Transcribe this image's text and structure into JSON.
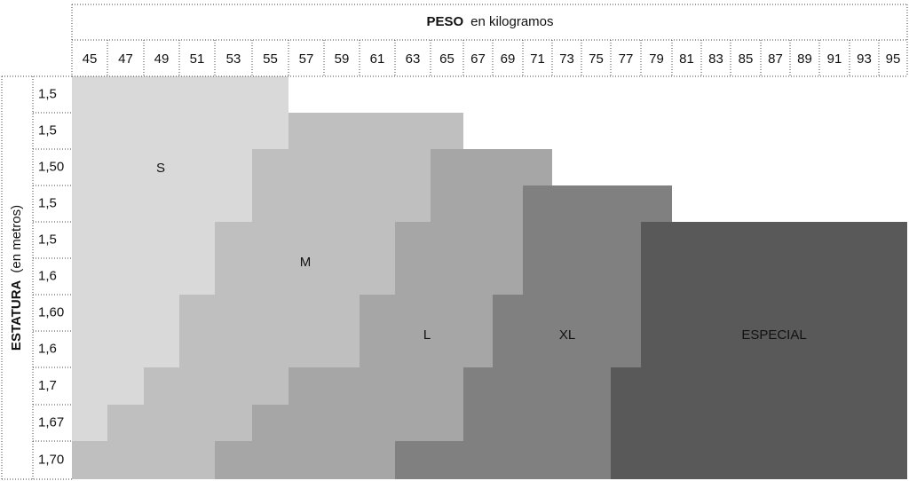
{
  "header": {
    "title": "PESO",
    "subtitle": "en kilogramos"
  },
  "side": {
    "title": "ESTATURA",
    "subtitle": "(en metros)"
  },
  "columns": [
    45,
    47,
    49,
    51,
    53,
    55,
    57,
    59,
    61,
    63,
    65,
    67,
    69,
    71,
    73,
    75,
    77,
    79,
    81,
    83,
    85,
    87,
    89,
    91,
    93,
    95
  ],
  "rows": [
    "1,5",
    "1,5",
    "1,50",
    "1,5",
    "1,5",
    "1,6",
    "1,60",
    "1,6",
    "1,7",
    "1,67",
    "1,70"
  ],
  "sizes": [
    {
      "label": "S",
      "color": "#d9d9d9"
    },
    {
      "label": "M",
      "color": "#bfbfbf"
    },
    {
      "label": "L",
      "color": "#a6a6a6"
    },
    {
      "label": "XL",
      "color": "#808080"
    },
    {
      "label": "ESPECIAL",
      "color": "#595959"
    }
  ]
}
